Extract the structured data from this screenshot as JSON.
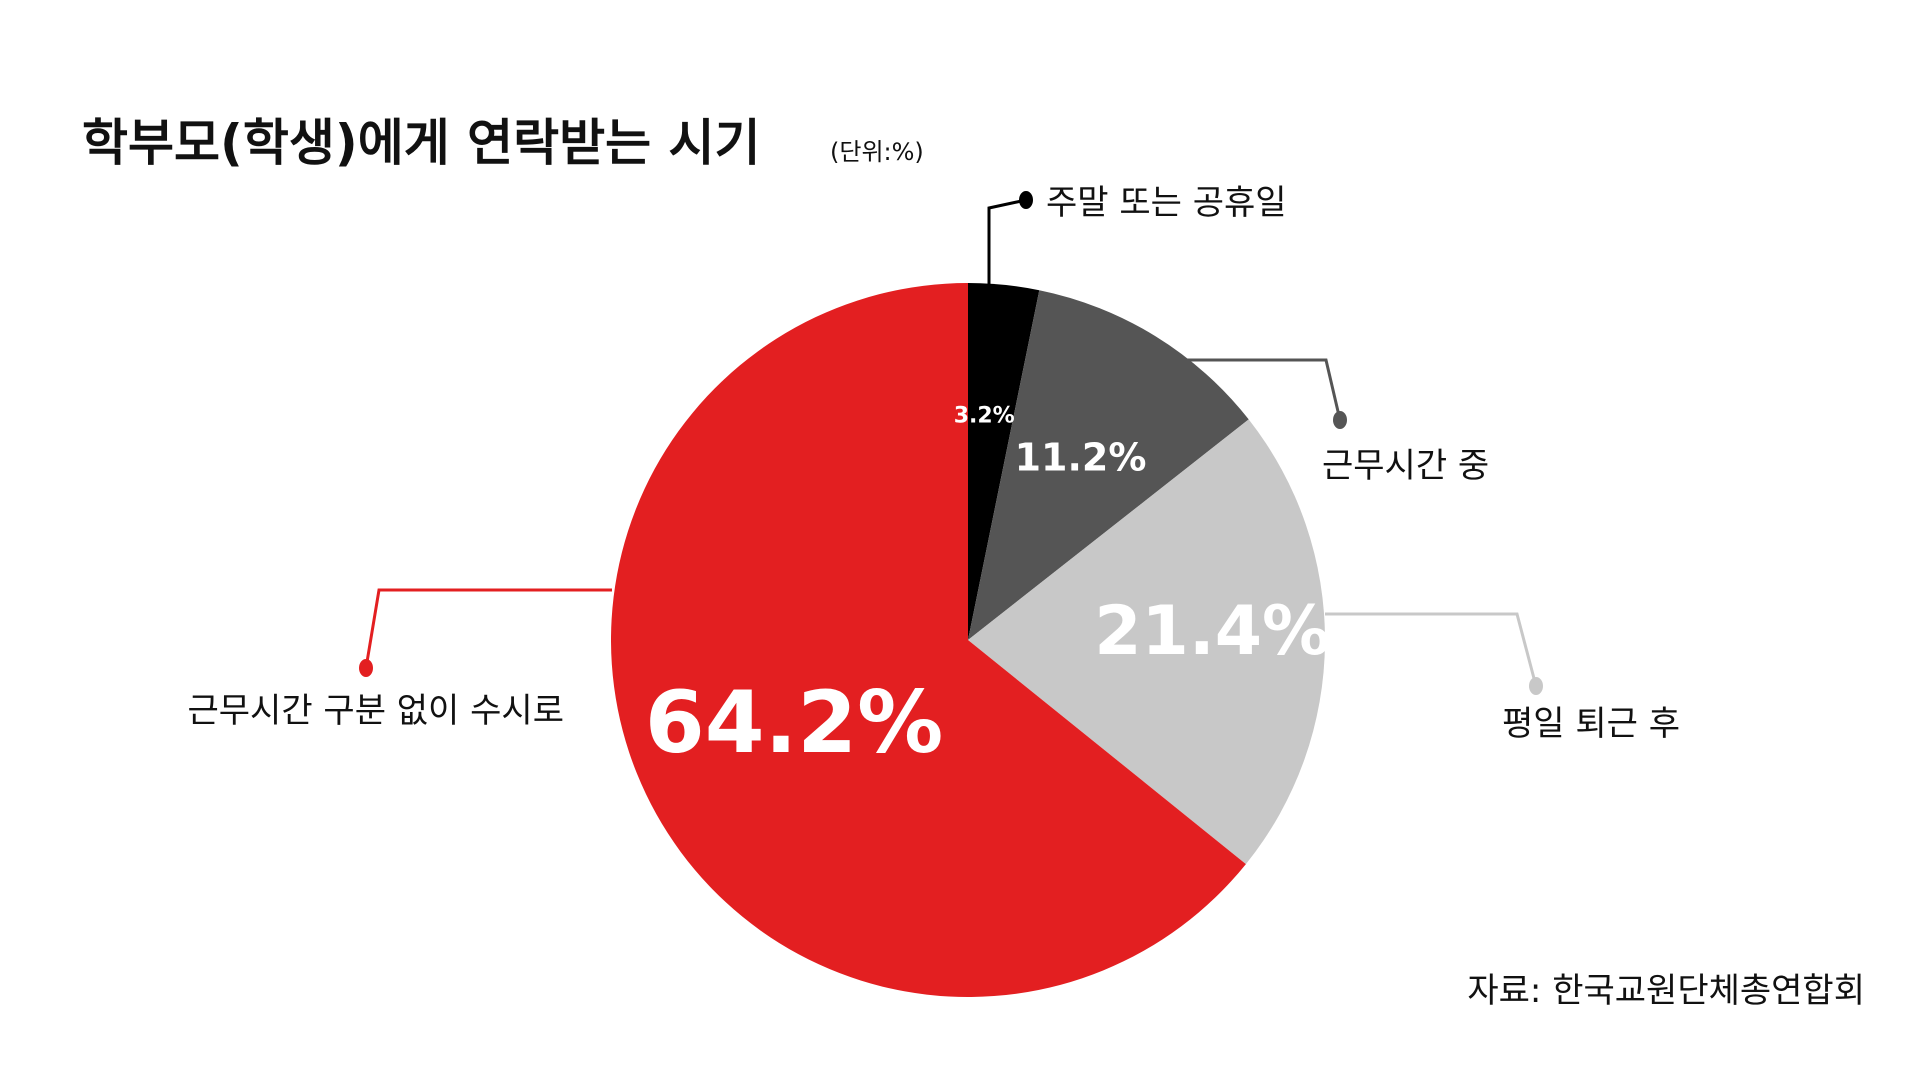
{
  "chart_data": {
    "type": "pie",
    "title": "학부모(학생)에게 연락받는 시기",
    "unit": "(단위:%)",
    "slices": [
      {
        "label": "주말 또는 공휴일",
        "value": 3.2,
        "value_label": "3.2%",
        "color": "#000000"
      },
      {
        "label": "근무시간 중",
        "value": 11.2,
        "value_label": "11.2%",
        "color": "#555555"
      },
      {
        "label": "평일 퇴근 후",
        "value": 21.4,
        "value_label": "21.4%",
        "color": "#c8c8c8"
      },
      {
        "label": "근무시간 구분 없이 수시로",
        "value": 64.2,
        "value_label": "64.2%",
        "color": "#e31f21"
      }
    ],
    "start_angle": "12 o'clock",
    "direction": "clockwise",
    "source": "자료: 한국교원단체총연합회"
  }
}
